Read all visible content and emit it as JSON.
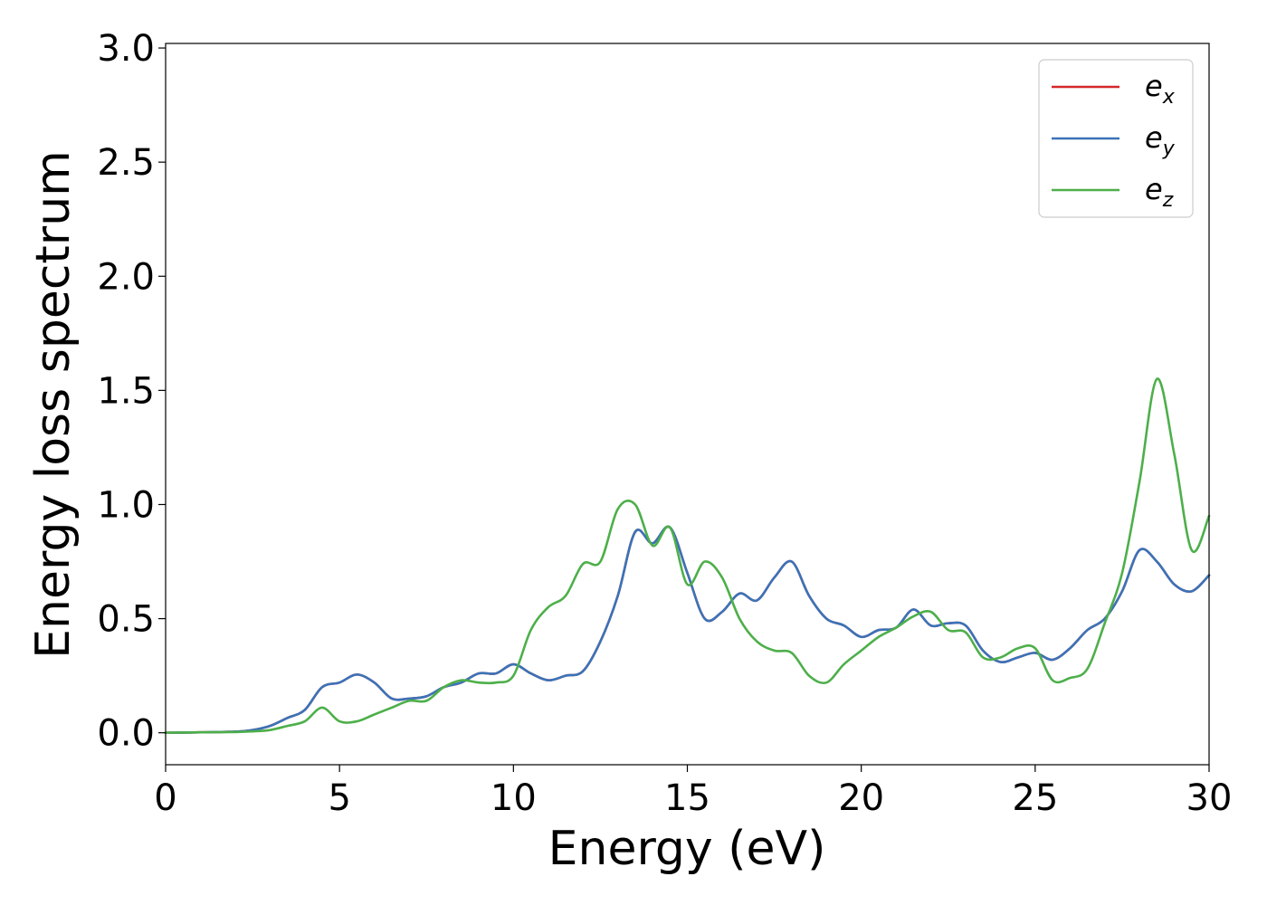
{
  "chart_data": {
    "type": "line",
    "xlabel": "Energy (eV)",
    "ylabel": "Energy loss spectrum",
    "xlim": [
      0,
      30
    ],
    "ylim": [
      -0.14,
      3.02
    ],
    "xticks": [
      0,
      5,
      10,
      15,
      20,
      25,
      30
    ],
    "xtick_labels": [
      "0",
      "5",
      "10",
      "15",
      "20",
      "25",
      "30"
    ],
    "yticks": [
      0.0,
      0.5,
      1.0,
      1.5,
      2.0,
      2.5,
      3.0
    ],
    "ytick_labels": [
      "0.0",
      "0.5",
      "1.0",
      "1.5",
      "2.0",
      "2.5",
      "3.0"
    ],
    "grid": false,
    "legend_position": "top-right",
    "series": [
      {
        "name": "e",
        "subscript": "x",
        "color": "#d62728",
        "x": [
          0,
          1,
          2,
          2.5,
          3,
          3.5,
          4,
          4.5,
          5,
          5.5,
          6,
          6.5,
          7,
          7.5,
          8,
          8.5,
          9,
          9.5,
          10,
          10.5,
          11,
          11.5,
          12,
          12.5,
          13,
          13.5,
          14,
          14.5,
          15,
          15.5,
          16,
          16.5,
          17,
          17.5,
          18,
          18.5,
          19,
          19.5,
          20,
          20.5,
          21,
          21.5,
          22,
          22.5,
          23,
          23.5,
          24,
          24.5,
          25,
          25.5,
          26,
          26.5,
          27,
          27.5,
          28,
          28.5,
          29,
          29.5,
          30
        ],
        "y": [
          0.0,
          0.002,
          0.005,
          0.012,
          0.03,
          0.065,
          0.1,
          0.2,
          0.22,
          0.255,
          0.22,
          0.15,
          0.15,
          0.16,
          0.2,
          0.22,
          0.26,
          0.26,
          0.3,
          0.26,
          0.23,
          0.25,
          0.27,
          0.4,
          0.6,
          0.88,
          0.83,
          0.9,
          0.7,
          0.5,
          0.53,
          0.61,
          0.58,
          0.68,
          0.75,
          0.6,
          0.5,
          0.47,
          0.42,
          0.45,
          0.46,
          0.54,
          0.47,
          0.48,
          0.47,
          0.36,
          0.31,
          0.33,
          0.35,
          0.32,
          0.37,
          0.45,
          0.5,
          0.62,
          0.8,
          0.75,
          0.65,
          0.62,
          0.69
        ]
      },
      {
        "name": "e",
        "subscript": "y",
        "color": "#3a73b8",
        "x": [
          0,
          1,
          2,
          2.5,
          3,
          3.5,
          4,
          4.5,
          5,
          5.5,
          6,
          6.5,
          7,
          7.5,
          8,
          8.5,
          9,
          9.5,
          10,
          10.5,
          11,
          11.5,
          12,
          12.5,
          13,
          13.5,
          14,
          14.5,
          15,
          15.5,
          16,
          16.5,
          17,
          17.5,
          18,
          18.5,
          19,
          19.5,
          20,
          20.5,
          21,
          21.5,
          22,
          22.5,
          23,
          23.5,
          24,
          24.5,
          25,
          25.5,
          26,
          26.5,
          27,
          27.5,
          28,
          28.5,
          29,
          29.5,
          30
        ],
        "y": [
          0.0,
          0.002,
          0.005,
          0.012,
          0.03,
          0.065,
          0.1,
          0.2,
          0.22,
          0.255,
          0.22,
          0.15,
          0.15,
          0.16,
          0.2,
          0.22,
          0.26,
          0.26,
          0.3,
          0.26,
          0.23,
          0.25,
          0.27,
          0.4,
          0.6,
          0.88,
          0.83,
          0.9,
          0.7,
          0.5,
          0.53,
          0.61,
          0.58,
          0.68,
          0.75,
          0.6,
          0.5,
          0.47,
          0.42,
          0.45,
          0.46,
          0.54,
          0.47,
          0.48,
          0.47,
          0.36,
          0.31,
          0.33,
          0.35,
          0.32,
          0.37,
          0.45,
          0.5,
          0.62,
          0.8,
          0.75,
          0.65,
          0.62,
          0.69
        ]
      },
      {
        "name": "e",
        "subscript": "z",
        "color": "#4daf4a",
        "x": [
          0,
          1,
          2,
          2.5,
          3,
          3.5,
          4,
          4.5,
          5,
          5.5,
          6,
          6.5,
          7,
          7.5,
          8,
          8.5,
          9,
          9.5,
          10,
          10.5,
          11,
          11.5,
          12,
          12.5,
          13,
          13.5,
          14,
          14.5,
          15,
          15.5,
          16,
          16.5,
          17,
          17.5,
          18,
          18.5,
          19,
          19.5,
          20,
          20.5,
          21,
          21.5,
          22,
          22.5,
          23,
          23.5,
          24,
          24.5,
          25,
          25.5,
          26,
          26.5,
          27,
          27.5,
          28,
          28.5,
          29,
          29.5,
          30
        ],
        "y": [
          0.0,
          0.002,
          0.003,
          0.006,
          0.012,
          0.03,
          0.05,
          0.11,
          0.05,
          0.05,
          0.08,
          0.11,
          0.14,
          0.14,
          0.2,
          0.23,
          0.22,
          0.22,
          0.25,
          0.45,
          0.55,
          0.6,
          0.74,
          0.75,
          0.98,
          1.0,
          0.82,
          0.9,
          0.65,
          0.75,
          0.68,
          0.5,
          0.4,
          0.36,
          0.35,
          0.25,
          0.22,
          0.3,
          0.36,
          0.42,
          0.46,
          0.51,
          0.53,
          0.45,
          0.44,
          0.33,
          0.33,
          0.37,
          0.37,
          0.23,
          0.24,
          0.28,
          0.48,
          0.7,
          1.1,
          1.55,
          1.22,
          0.8,
          0.95
        ]
      }
    ]
  }
}
